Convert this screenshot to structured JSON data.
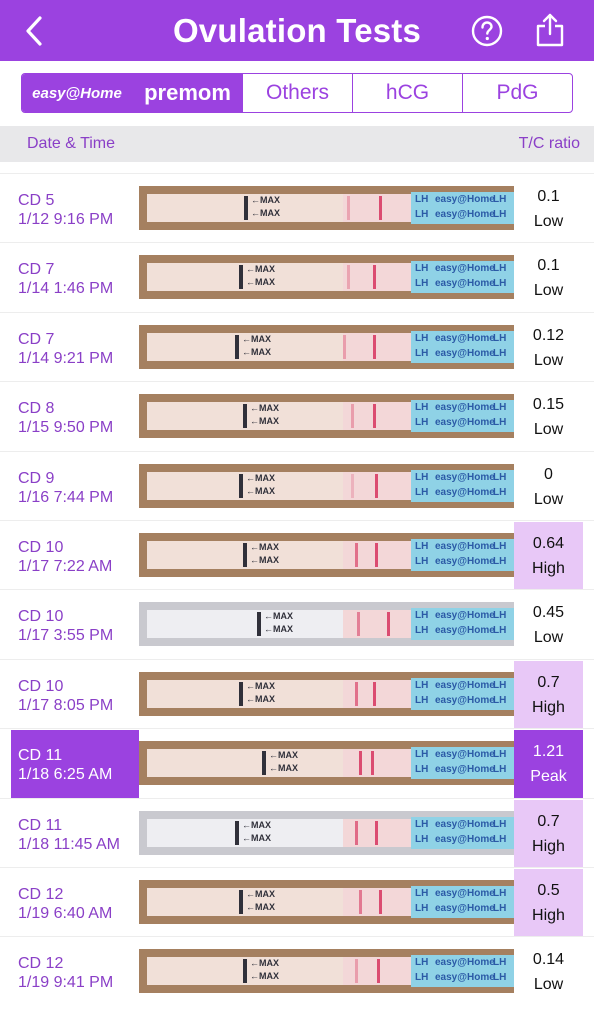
{
  "header": {
    "title": "Ovulation Tests",
    "back_icon": "chevron-left-icon",
    "help_icon": "question-circle-icon",
    "share_icon": "share-icon"
  },
  "tabs": [
    {
      "label": "easy@Home",
      "selected": true
    },
    {
      "label": "premom",
      "selected": true
    },
    {
      "label": "Others",
      "selected": false
    },
    {
      "label": "hCG",
      "selected": false
    },
    {
      "label": "PdG",
      "selected": false
    }
  ],
  "columns": {
    "date_time": "Date & Time",
    "tc_ratio": "T/C ratio"
  },
  "strip_labels": {
    "max": "←MAX",
    "lh": "LH",
    "brand": "easy@Home"
  },
  "colors": {
    "accent": "#9b42e0",
    "high_bg": "#e8c8f7",
    "peak_bg": "#9b42e0"
  },
  "rows": [
    {
      "cd": "CD 5",
      "date": "1/12 9:16 PM",
      "ratio": "0.1",
      "level": "Low",
      "line_intensity": 0.35
    },
    {
      "cd": "CD 7",
      "date": "1/14 1:46 PM",
      "ratio": "0.1",
      "level": "Low",
      "line_intensity": 0.35
    },
    {
      "cd": "CD 7",
      "date": "1/14 9:21 PM",
      "ratio": "0.12",
      "level": "Low",
      "line_intensity": 0.4
    },
    {
      "cd": "CD 8",
      "date": "1/15 9:50 PM",
      "ratio": "0.15",
      "level": "Low",
      "line_intensity": 0.4
    },
    {
      "cd": "CD 9",
      "date": "1/16 7:44 PM",
      "ratio": "0",
      "level": "Low",
      "line_intensity": 0.25
    },
    {
      "cd": "CD 10",
      "date": "1/17 7:22 AM",
      "ratio": "0.64",
      "level": "High",
      "line_intensity": 0.7
    },
    {
      "cd": "CD 10",
      "date": "1/17 3:55 PM",
      "ratio": "0.45",
      "level": "Low",
      "line_intensity": 0.6
    },
    {
      "cd": "CD 10",
      "date": "1/17 8:05 PM",
      "ratio": "0.7",
      "level": "High",
      "line_intensity": 0.7
    },
    {
      "cd": "CD 11",
      "date": "1/18 6:25 AM",
      "ratio": "1.21",
      "level": "Peak",
      "line_intensity": 0.95
    },
    {
      "cd": "CD 11",
      "date": "1/18 11:45 AM",
      "ratio": "0.7",
      "level": "High",
      "line_intensity": 0.75
    },
    {
      "cd": "CD 12",
      "date": "1/19 6:40 AM",
      "ratio": "0.5",
      "level": "High",
      "line_intensity": 0.65
    },
    {
      "cd": "CD 12",
      "date": "1/19 9:41 PM",
      "ratio": "0.14",
      "level": "Low",
      "line_intensity": 0.4
    }
  ]
}
